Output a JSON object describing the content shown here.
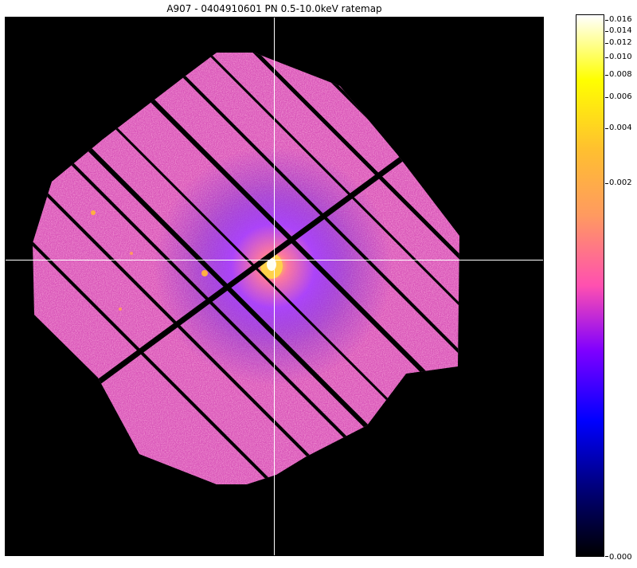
{
  "title": "A907 - 0404910601 PN 0.5-10.0keV ratemap",
  "colorbar": {
    "ticks": [
      "0.016",
      "0.014",
      "0.012",
      "0.010",
      "0.008",
      "0.006",
      "0.004",
      "0.002",
      "0.000"
    ],
    "colors": [
      "#000000",
      "#00007f",
      "#0000ff",
      "#7f00ff",
      "#ff50b0",
      "#ff9a60",
      "#ffbf30",
      "#ffff00",
      "#ffffff"
    ]
  },
  "image": {
    "colormap": "gnuplot2",
    "crosshair_color": "#ffffff",
    "background_color": "#000000"
  }
}
